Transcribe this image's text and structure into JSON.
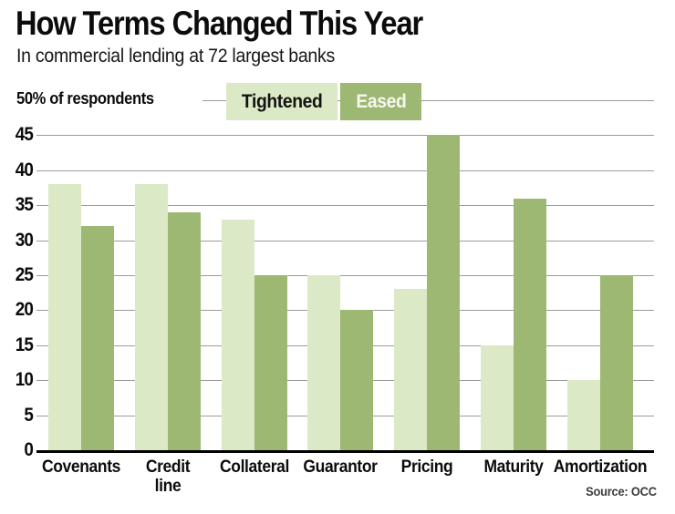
{
  "chart_data": {
    "type": "bar",
    "title": "How Terms Changed This Year",
    "subtitle": "In commercial lending at 72 largest banks",
    "axis_annotation": "50% of respondents",
    "categories": [
      "Covenants",
      "Credit\nline",
      "Collateral",
      "Guarantor",
      "Pricing",
      "Maturity",
      "Amortization"
    ],
    "series": [
      {
        "name": "Tightened",
        "values": [
          38,
          38,
          33,
          25,
          23,
          15,
          10
        ],
        "color": "#dce9c6",
        "text_color": "#131313"
      },
      {
        "name": "Eased",
        "values": [
          32,
          34,
          25,
          20,
          45,
          36,
          25
        ],
        "color": "#9cb873",
        "text_color": "#f8f7ef"
      }
    ],
    "ylabel": "% of respondents",
    "ylim": [
      0,
      50
    ],
    "ytick_step": 5,
    "yticks_labeled": [
      0,
      5,
      10,
      15,
      20,
      25,
      30,
      35,
      40,
      45
    ],
    "grid": true,
    "legend_position": "top",
    "source": "Source: OCC"
  },
  "colors": {
    "tightened": "#dce9c6",
    "eased": "#9cb873",
    "gridline": "#9c9c9c",
    "axis": "#000000",
    "ink": "#0c0c0c",
    "background": "#ffffff"
  }
}
